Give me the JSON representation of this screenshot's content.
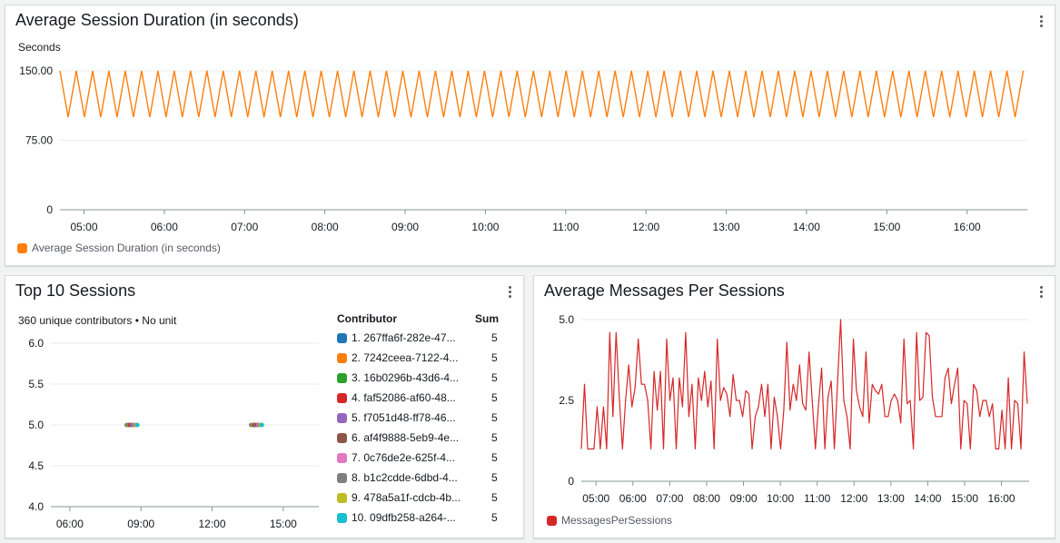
{
  "colors": {
    "orange": "#ff7f0e",
    "red": "#d62728",
    "grid": "#e9ebed",
    "axis": "#879596"
  },
  "panel1": {
    "title": "Average Session Duration (in seconds)",
    "unit_label": "Seconds",
    "legend": "Average Session Duration (in seconds)"
  },
  "panel2": {
    "title": "Top 10 Sessions",
    "subtitle": "360 unique contributors • No unit",
    "col_contributor": "Contributor",
    "col_sum": "Sum",
    "contributors": [
      {
        "label": "1. 267ffa6f-282e-47...",
        "sum": "5",
        "color": "#1f77b4"
      },
      {
        "label": "2. 7242ceea-7122-4...",
        "sum": "5",
        "color": "#ff7f0e"
      },
      {
        "label": "3. 16b0296b-43d6-4...",
        "sum": "5",
        "color": "#2ca02c"
      },
      {
        "label": "4. faf52086-af60-48...",
        "sum": "5",
        "color": "#d62728"
      },
      {
        "label": "5. f7051d48-ff78-46...",
        "sum": "5",
        "color": "#9467bd"
      },
      {
        "label": "6. af4f9888-5eb9-4e...",
        "sum": "5",
        "color": "#8c564b"
      },
      {
        "label": "7. 0c76de2e-625f-4...",
        "sum": "5",
        "color": "#e377c2"
      },
      {
        "label": "8. b1c2cdde-6dbd-4...",
        "sum": "5",
        "color": "#7f7f7f"
      },
      {
        "label": "9. 478a5a1f-cdcb-4b...",
        "sum": "5",
        "color": "#bcbd22"
      },
      {
        "label": "10. 09dfb258-a264-...",
        "sum": "5",
        "color": "#17becf"
      }
    ]
  },
  "panel3": {
    "title": "Average Messages Per Sessions",
    "legend": "MessagesPerSessions"
  },
  "chart_data": [
    {
      "type": "line",
      "title": "Average Session Duration (in seconds)",
      "ylabel": "Seconds",
      "ylim": [
        0,
        150
      ],
      "yticks": [
        "0",
        "75.00",
        "150.00"
      ],
      "xlim": [
        4.7,
        16.75
      ],
      "xticks": [
        "05:00",
        "06:00",
        "07:00",
        "08:00",
        "09:00",
        "10:00",
        "11:00",
        "12:00",
        "13:00",
        "14:00",
        "15:00",
        "16:00"
      ],
      "grid": true,
      "legend_position": "bottom-left",
      "series": [
        {
          "name": "Average Session Duration (in seconds)",
          "color": "#ff7f0e",
          "pattern": "alternating",
          "x_start": 4.7,
          "x_end": 16.7,
          "high": 150,
          "low": 100,
          "segments": 118
        }
      ]
    },
    {
      "type": "scatter",
      "title": "Top 10 Sessions",
      "ylim": [
        4.0,
        6.0
      ],
      "yticks": [
        "4.0",
        "4.5",
        "5.0",
        "5.5",
        "6.0"
      ],
      "xlim": [
        5.2,
        16.5
      ],
      "xticks": [
        "06:00",
        "09:00",
        "12:00",
        "15:00"
      ],
      "grid": true,
      "series": [
        {
          "name": "1. 267ffa6f-282e-47...",
          "color": "#1f77b4",
          "points": [
            [
              8.4,
              5
            ],
            [
              13.65,
              5
            ]
          ]
        },
        {
          "name": "2. 7242ceea-7122-4...",
          "color": "#ff7f0e",
          "points": [
            [
              8.45,
              5
            ],
            [
              13.7,
              5
            ]
          ]
        },
        {
          "name": "3. 16b0296b-43d6-4...",
          "color": "#2ca02c",
          "points": [
            [
              8.5,
              5
            ],
            [
              13.75,
              5
            ]
          ]
        },
        {
          "name": "4. faf52086-af60-48...",
          "color": "#d62728",
          "points": [
            [
              8.55,
              5
            ],
            [
              13.8,
              5
            ]
          ]
        },
        {
          "name": "5. f7051d48-ff78-46...",
          "color": "#9467bd",
          "points": [
            [
              8.6,
              5
            ],
            [
              13.85,
              5
            ]
          ]
        },
        {
          "name": "6. af4f9888-5eb9-4e...",
          "color": "#8c564b",
          "points": [
            [
              8.65,
              5
            ],
            [
              13.9,
              5
            ]
          ]
        },
        {
          "name": "7. 0c76de2e-625f-4...",
          "color": "#e377c2",
          "points": [
            [
              8.7,
              5
            ],
            [
              13.95,
              5
            ]
          ]
        },
        {
          "name": "8. b1c2cdde-6dbd-4...",
          "color": "#7f7f7f",
          "points": [
            [
              8.75,
              5
            ],
            [
              14.0,
              5
            ]
          ]
        },
        {
          "name": "9. 478a5a1f-cdcb-4b...",
          "color": "#bcbd22",
          "points": [
            [
              8.8,
              5
            ],
            [
              14.05,
              5
            ]
          ]
        },
        {
          "name": "10. 09dfb258-a264-...",
          "color": "#17becf",
          "points": [
            [
              8.85,
              5
            ],
            [
              14.1,
              5
            ]
          ]
        }
      ]
    },
    {
      "type": "line",
      "title": "Average Messages Per Sessions",
      "ylim": [
        0,
        5
      ],
      "yticks": [
        "0",
        "2.5",
        "5.0"
      ],
      "xlim": [
        4.6,
        16.75
      ],
      "xticks": [
        "05:00",
        "06:00",
        "07:00",
        "08:00",
        "09:00",
        "10:00",
        "11:00",
        "12:00",
        "13:00",
        "14:00",
        "15:00",
        "16:00"
      ],
      "grid": true,
      "legend_position": "bottom-left",
      "series": [
        {
          "name": "MessagesPerSessions",
          "color": "#d62728",
          "x_start": 4.6,
          "x_end": 16.7,
          "values": [
            1.0,
            3.0,
            1.0,
            1.0,
            1.0,
            2.3,
            1.0,
            2.3,
            1.0,
            4.6,
            2.0,
            4.6,
            2.6,
            1.0,
            2.5,
            3.6,
            2.3,
            2.9,
            4.4,
            3.0,
            3.0,
            2.5,
            1.0,
            3.4,
            2.2,
            3.4,
            1.0,
            4.4,
            2.5,
            3.2,
            1.0,
            3.2,
            2.3,
            4.6,
            2.0,
            3.0,
            1.0,
            3.2,
            2.5,
            3.4,
            2.3,
            3.1,
            1.0,
            4.4,
            2.5,
            2.9,
            2.7,
            2.0,
            3.3,
            2.5,
            2.5,
            2.0,
            2.8,
            2.7,
            1.0,
            2.0,
            2.3,
            3.0,
            2.0,
            3.0,
            1.0,
            2.6,
            2.0,
            1.0,
            2.2,
            4.3,
            2.2,
            3.0,
            2.5,
            3.6,
            2.4,
            2.2,
            4.0,
            2.5,
            1.0,
            2.4,
            3.5,
            1.0,
            2.6,
            3.1,
            1.0,
            3.0,
            5.0,
            2.5,
            2.0,
            1.0,
            4.4,
            2.8,
            2.3,
            2.0,
            4.0,
            1.8,
            3.0,
            2.8,
            2.7,
            3.0,
            2.0,
            2.0,
            2.5,
            2.7,
            2.5,
            1.8,
            4.4,
            2.4,
            2.5,
            1.0,
            4.6,
            2.5,
            2.6,
            4.6,
            4.5,
            2.6,
            2.0,
            2.0,
            2.0,
            3.2,
            3.5,
            2.4,
            3.0,
            3.5,
            1.0,
            2.5,
            2.4,
            1.0,
            3.0,
            2.8,
            2.0,
            2.5,
            2.5,
            2.0,
            2.4,
            1.0,
            1.0,
            2.2,
            1.0,
            3.2,
            1.0,
            2.5,
            2.4,
            1.0,
            4.0,
            2.4
          ]
        }
      ]
    }
  ]
}
